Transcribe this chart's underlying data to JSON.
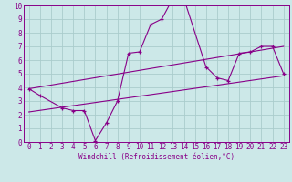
{
  "title": "",
  "xlabel": "Windchill (Refroidissement éolien,°C)",
  "ylabel": "",
  "bg_color": "#cce8e8",
  "line_color": "#880088",
  "grid_color": "#aacccc",
  "xlim": [
    -0.5,
    23.5
  ],
  "ylim": [
    0,
    10
  ],
  "xticks": [
    0,
    1,
    2,
    3,
    4,
    5,
    6,
    7,
    8,
    9,
    10,
    11,
    12,
    13,
    14,
    15,
    16,
    17,
    18,
    19,
    20,
    21,
    22,
    23
  ],
  "yticks": [
    0,
    1,
    2,
    3,
    4,
    5,
    6,
    7,
    8,
    9,
    10
  ],
  "zigzag_x": [
    0,
    1,
    3,
    4,
    5,
    6,
    7,
    8,
    9,
    10,
    11,
    12,
    13,
    14,
    16,
    17,
    18,
    19,
    20,
    21,
    22,
    23
  ],
  "zigzag_y": [
    3.9,
    3.4,
    2.5,
    2.3,
    2.3,
    0.1,
    1.4,
    3.0,
    6.5,
    6.6,
    8.6,
    9.0,
    10.5,
    10.5,
    5.5,
    4.7,
    4.5,
    6.5,
    6.6,
    7.0,
    7.0,
    5.0
  ],
  "upper_line_x": [
    0,
    23
  ],
  "upper_line_y": [
    3.9,
    7.0
  ],
  "lower_line_x": [
    0,
    23
  ],
  "lower_line_y": [
    2.2,
    4.85
  ],
  "tick_fontsize": 5.5,
  "xlabel_fontsize": 5.5
}
